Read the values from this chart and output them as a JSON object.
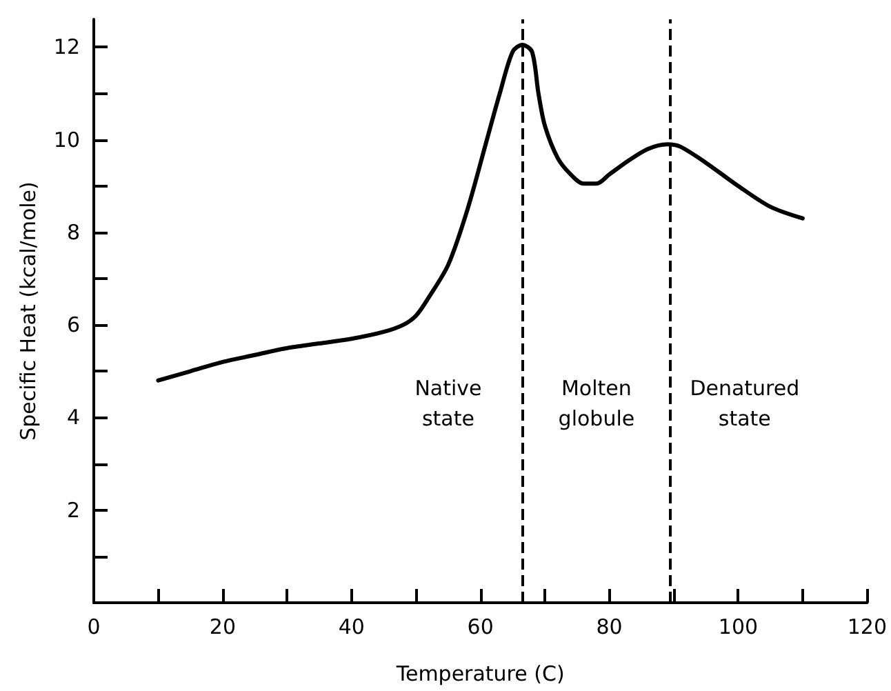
{
  "chart_data": {
    "type": "line",
    "xlabel": "Temperature (C)",
    "ylabel": "Specific Heat (kcal/mole)",
    "x": [
      10,
      15,
      20,
      25,
      30,
      35,
      40,
      45,
      48,
      50,
      52,
      55,
      58,
      61,
      63,
      65,
      66.5,
      68,
      69,
      70,
      72,
      74,
      76,
      78,
      80,
      83,
      86,
      89,
      91,
      95,
      100,
      105,
      110
    ],
    "series": [
      {
        "color": "#000000",
        "values": [
          4.8,
          5.0,
          5.2,
          5.35,
          5.5,
          5.6,
          5.7,
          5.85,
          6.0,
          6.2,
          6.6,
          7.3,
          8.5,
          10.0,
          11.0,
          11.9,
          12.05,
          11.9,
          11.0,
          10.3,
          9.6,
          9.25,
          9.05,
          9.05,
          9.25,
          9.55,
          9.8,
          9.9,
          9.85,
          9.5,
          9.0,
          8.55,
          8.3
        ]
      }
    ],
    "xlim": [
      0,
      120
    ],
    "ylim": [
      0,
      12.6
    ],
    "xticks": [
      0,
      {
        "value": 10,
        "label": null
      },
      20,
      {
        "value": 30,
        "label": null
      },
      40,
      {
        "value": 50,
        "label": null
      },
      60,
      {
        "value": 70,
        "label": null
      },
      80,
      {
        "value": 90,
        "label": null
      },
      100,
      {
        "value": 110,
        "label": null
      },
      120
    ],
    "yticks": [
      {
        "value": 1,
        "label": null
      },
      2,
      {
        "value": 3,
        "label": null
      },
      4,
      {
        "value": 5,
        "label": null
      },
      6,
      {
        "value": 7,
        "label": null
      },
      8,
      {
        "value": 9,
        "label": null
      },
      10,
      {
        "value": 11,
        "label": null
      },
      12
    ],
    "ref_lines": [
      {
        "axis": "x",
        "value": 66.5,
        "color": "#000000",
        "line_style": "dashed"
      },
      {
        "axis": "x",
        "value": 89.5,
        "color": "#000000",
        "line_style": "dashed"
      }
    ],
    "annotations": [
      "Native\nstate",
      "Molten\nglobule",
      "Denatured\nstate"
    ],
    "grid": false,
    "marker": "none",
    "line_style": "solid"
  }
}
